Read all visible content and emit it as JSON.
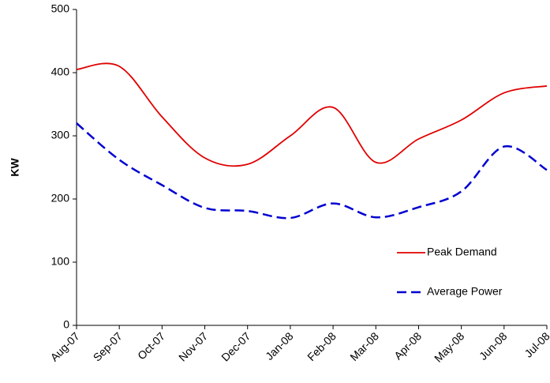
{
  "chart_data": {
    "type": "line",
    "categories": [
      "Aug-07",
      "Sep-07",
      "Oct-07",
      "Nov-07",
      "Dec-07",
      "Jan-08",
      "Feb-08",
      "Mar-08",
      "Apr-08",
      "May-08",
      "Jun-08",
      "Jul-08"
    ],
    "y_label": "KW",
    "series": [
      {
        "name": "Peak Demand",
        "color": "#e00000",
        "dash": false,
        "values": [
          405,
          410,
          330,
          265,
          255,
          300,
          345,
          258,
          295,
          325,
          368,
          379
        ]
      },
      {
        "name": "Average Power",
        "color": "#0000d0",
        "dash": true,
        "values": [
          320,
          262,
          222,
          186,
          181,
          170,
          193,
          171,
          187,
          212,
          283,
          246
        ]
      }
    ],
    "ylim": [
      0,
      500
    ],
    "yticks": [
      0,
      100,
      200,
      300,
      400,
      500
    ],
    "grid": false,
    "legend": "right"
  }
}
